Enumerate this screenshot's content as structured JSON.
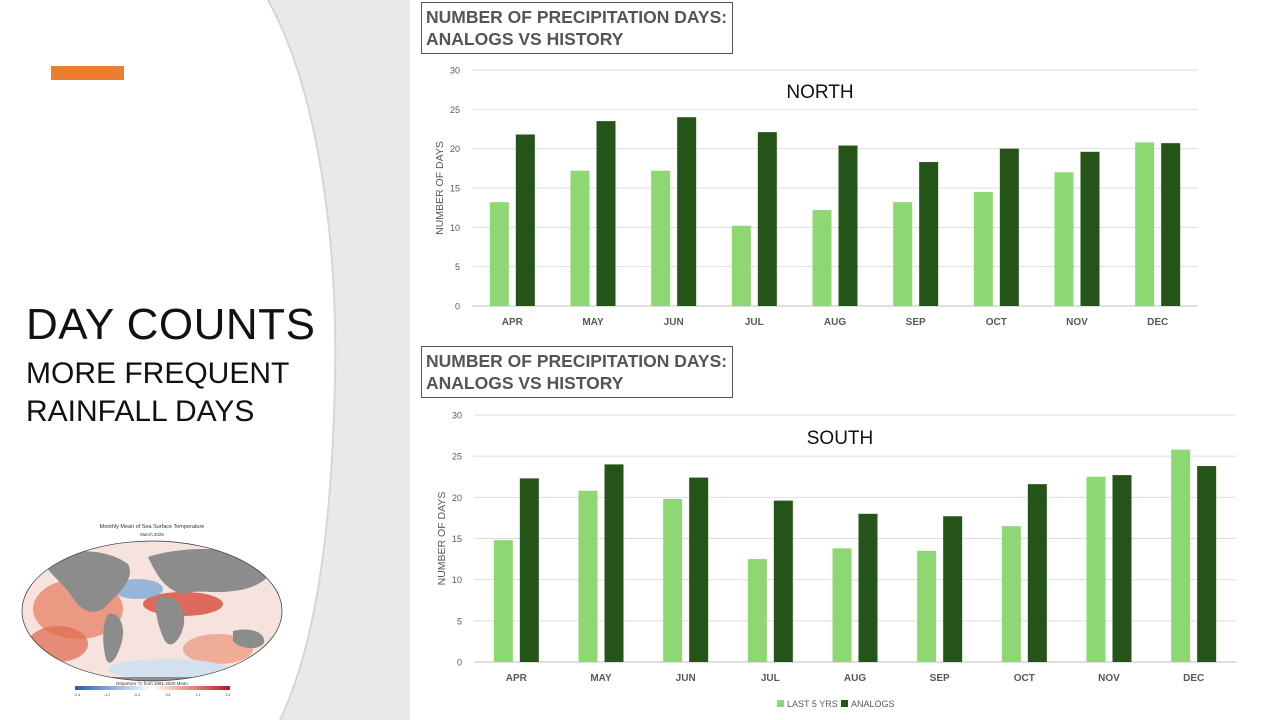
{
  "slide": {
    "title": "DAY COUNTS",
    "subtitle_line1": "MORE FREQUENT",
    "subtitle_line2": "RAINFALL DAYS",
    "accent_color": "#ED7D31"
  },
  "map": {
    "title": "Monthly Mean of Sea Surface Temperature",
    "subtitle": "March 2025",
    "legend_label": "Departure °C from 1991-2020 Mean",
    "legend_ticks": [
      "-2.4",
      "-1.2",
      "-0.4",
      "0.4",
      "1.2",
      "2.4"
    ]
  },
  "colors": {
    "last5": "#8ED874",
    "analogs": "#245418"
  },
  "chart_data": [
    {
      "type": "bar",
      "caption_line1": "NUMBER OF PRECIPITATION DAYS:",
      "caption_line2": "ANALOGS VS HISTORY",
      "title": "NORTH",
      "ylabel": "NUMBER OF DAYS",
      "xlabel": "",
      "ylim": [
        0,
        30
      ],
      "yticks": [
        "0",
        "5",
        "10",
        "15",
        "20",
        "25",
        "30"
      ],
      "categories": [
        "APR",
        "MAY",
        "JUN",
        "JUL",
        "AUG",
        "SEP",
        "OCT",
        "NOV",
        "DEC"
      ],
      "series": [
        {
          "name": "LAST 5 YRS",
          "values": [
            13.2,
            17.2,
            17.2,
            10.2,
            12.2,
            13.2,
            14.5,
            17.0,
            20.8
          ]
        },
        {
          "name": "ANALOGS",
          "values": [
            21.8,
            23.5,
            24.0,
            22.1,
            20.4,
            18.3,
            20.0,
            19.6,
            20.7
          ]
        }
      ],
      "grid": true
    },
    {
      "type": "bar",
      "caption_line1": "NUMBER OF PRECIPITATION DAYS:",
      "caption_line2": "ANALOGS VS HISTORY",
      "title": "SOUTH",
      "ylabel": "NUMBER OF DAYS",
      "xlabel": "",
      "ylim": [
        0,
        30
      ],
      "yticks": [
        "0",
        "5",
        "10",
        "15",
        "20",
        "25",
        "30"
      ],
      "categories": [
        "APR",
        "MAY",
        "JUN",
        "JUL",
        "AUG",
        "SEP",
        "OCT",
        "NOV",
        "DEC"
      ],
      "series": [
        {
          "name": "LAST 5 YRS",
          "values": [
            14.8,
            20.8,
            19.8,
            12.5,
            13.8,
            13.5,
            16.5,
            22.5,
            25.8
          ]
        },
        {
          "name": "ANALOGS",
          "values": [
            22.3,
            24.0,
            22.4,
            19.6,
            18.0,
            17.7,
            21.6,
            22.7,
            23.8
          ]
        }
      ],
      "legend": [
        "LAST 5 YRS",
        "ANALOGS"
      ],
      "legend_position": "bottom-center",
      "grid": true
    }
  ]
}
